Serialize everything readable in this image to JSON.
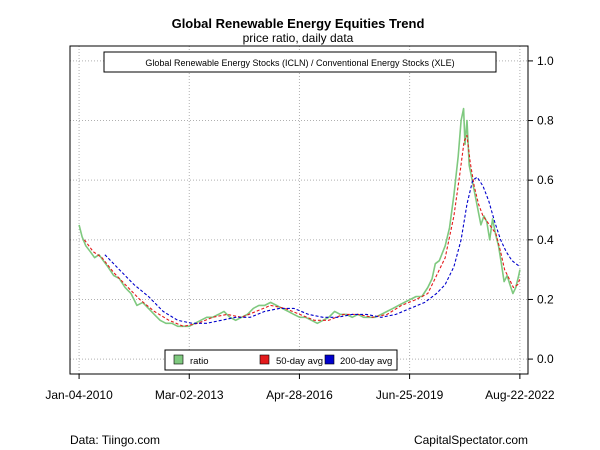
{
  "chart_data": {
    "type": "line",
    "title": "Global Renewable Energy Equities Trend",
    "subtitle": "price ratio, daily data",
    "annotation": "Global Renewable Energy Stocks (ICLN) / Conventional Energy Stocks (XLE)",
    "xlabel": "",
    "ylabel": "",
    "x_tick_labels": [
      "Jan-04-2010",
      "Mar-02-2013",
      "Apr-28-2016",
      "Jun-25-2019",
      "Aug-22-2022"
    ],
    "x_tick_dates": [
      "2010-01-04",
      "2013-03-02",
      "2016-04-28",
      "2019-06-25",
      "2022-08-22"
    ],
    "y_ticks": [
      0.0,
      0.2,
      0.4,
      0.6,
      0.8,
      1.0
    ],
    "y_tick_labels": [
      "0.0",
      "0.2",
      "0.4",
      "0.6",
      "0.8",
      "1.0"
    ],
    "ylim": [
      -0.05,
      1.05
    ],
    "xlim": [
      "2009-10-01",
      "2022-11-15"
    ],
    "grid": true,
    "y_axis_side": "right",
    "legend_position": "bottom-center",
    "series": [
      {
        "name": "ratio",
        "color": "#7fc97f",
        "style": "solid",
        "points": [
          [
            "2010-01-04",
            0.45
          ],
          [
            "2010-02-05",
            0.41
          ],
          [
            "2010-03-15",
            0.38
          ],
          [
            "2010-05-01",
            0.36
          ],
          [
            "2010-06-15",
            0.34
          ],
          [
            "2010-08-01",
            0.35
          ],
          [
            "2010-09-15",
            0.33
          ],
          [
            "2010-11-01",
            0.31
          ],
          [
            "2011-01-01",
            0.28
          ],
          [
            "2011-03-01",
            0.27
          ],
          [
            "2011-05-01",
            0.24
          ],
          [
            "2011-07-01",
            0.22
          ],
          [
            "2011-09-01",
            0.18
          ],
          [
            "2011-11-01",
            0.19
          ],
          [
            "2012-01-01",
            0.17
          ],
          [
            "2012-03-01",
            0.15
          ],
          [
            "2012-05-01",
            0.13
          ],
          [
            "2012-07-01",
            0.12
          ],
          [
            "2012-09-01",
            0.12
          ],
          [
            "2012-11-01",
            0.11
          ],
          [
            "2013-01-01",
            0.11
          ],
          [
            "2013-03-01",
            0.11
          ],
          [
            "2013-05-01",
            0.12
          ],
          [
            "2013-07-01",
            0.13
          ],
          [
            "2013-09-01",
            0.14
          ],
          [
            "2013-11-01",
            0.14
          ],
          [
            "2014-01-01",
            0.15
          ],
          [
            "2014-03-01",
            0.16
          ],
          [
            "2014-05-01",
            0.14
          ],
          [
            "2014-07-01",
            0.13
          ],
          [
            "2014-09-01",
            0.14
          ],
          [
            "2014-11-01",
            0.15
          ],
          [
            "2015-01-01",
            0.17
          ],
          [
            "2015-03-01",
            0.18
          ],
          [
            "2015-05-01",
            0.18
          ],
          [
            "2015-07-01",
            0.19
          ],
          [
            "2015-09-01",
            0.18
          ],
          [
            "2015-11-01",
            0.17
          ],
          [
            "2016-01-01",
            0.16
          ],
          [
            "2016-03-01",
            0.15
          ],
          [
            "2016-05-01",
            0.14
          ],
          [
            "2016-07-01",
            0.14
          ],
          [
            "2016-09-01",
            0.13
          ],
          [
            "2016-11-01",
            0.12
          ],
          [
            "2017-01-01",
            0.13
          ],
          [
            "2017-03-01",
            0.14
          ],
          [
            "2017-05-01",
            0.16
          ],
          [
            "2017-07-01",
            0.15
          ],
          [
            "2017-09-01",
            0.15
          ],
          [
            "2017-11-01",
            0.14
          ],
          [
            "2018-01-01",
            0.15
          ],
          [
            "2018-03-01",
            0.14
          ],
          [
            "2018-05-01",
            0.14
          ],
          [
            "2018-07-01",
            0.14
          ],
          [
            "2018-09-01",
            0.15
          ],
          [
            "2018-11-01",
            0.16
          ],
          [
            "2019-01-01",
            0.17
          ],
          [
            "2019-03-01",
            0.18
          ],
          [
            "2019-05-01",
            0.19
          ],
          [
            "2019-07-01",
            0.2
          ],
          [
            "2019-09-01",
            0.21
          ],
          [
            "2019-11-01",
            0.21
          ],
          [
            "2020-01-01",
            0.24
          ],
          [
            "2020-02-15",
            0.27
          ],
          [
            "2020-03-20",
            0.32
          ],
          [
            "2020-05-01",
            0.33
          ],
          [
            "2020-07-01",
            0.38
          ],
          [
            "2020-08-15",
            0.44
          ],
          [
            "2020-10-01",
            0.55
          ],
          [
            "2020-11-15",
            0.68
          ],
          [
            "2020-12-15",
            0.8
          ],
          [
            "2021-01-10",
            0.84
          ],
          [
            "2021-01-25",
            0.72
          ],
          [
            "2021-02-15",
            0.8
          ],
          [
            "2021-03-10",
            0.65
          ],
          [
            "2021-04-10",
            0.6
          ],
          [
            "2021-05-10",
            0.55
          ],
          [
            "2021-06-10",
            0.5
          ],
          [
            "2021-07-10",
            0.45
          ],
          [
            "2021-08-10",
            0.48
          ],
          [
            "2021-09-10",
            0.46
          ],
          [
            "2021-10-10",
            0.4
          ],
          [
            "2021-11-10",
            0.47
          ],
          [
            "2021-12-10",
            0.42
          ],
          [
            "2022-01-10",
            0.38
          ],
          [
            "2022-02-10",
            0.32
          ],
          [
            "2022-03-10",
            0.26
          ],
          [
            "2022-04-10",
            0.28
          ],
          [
            "2022-05-10",
            0.25
          ],
          [
            "2022-06-10",
            0.22
          ],
          [
            "2022-07-10",
            0.24
          ],
          [
            "2022-08-10",
            0.28
          ],
          [
            "2022-08-22",
            0.3
          ]
        ]
      },
      {
        "name": "50-day avg",
        "color": "#e41a1c",
        "style": "dashed",
        "points": [
          [
            "2010-03-01",
            0.4
          ],
          [
            "2010-06-01",
            0.36
          ],
          [
            "2010-09-01",
            0.34
          ],
          [
            "2011-01-01",
            0.29
          ],
          [
            "2011-06-01",
            0.24
          ],
          [
            "2011-10-01",
            0.2
          ],
          [
            "2012-03-01",
            0.16
          ],
          [
            "2012-08-01",
            0.13
          ],
          [
            "2013-01-01",
            0.11
          ],
          [
            "2013-06-01",
            0.12
          ],
          [
            "2013-11-01",
            0.14
          ],
          [
            "2014-04-01",
            0.15
          ],
          [
            "2014-09-01",
            0.14
          ],
          [
            "2015-02-01",
            0.16
          ],
          [
            "2015-07-01",
            0.18
          ],
          [
            "2015-12-01",
            0.17
          ],
          [
            "2016-05-01",
            0.15
          ],
          [
            "2016-10-01",
            0.13
          ],
          [
            "2017-03-01",
            0.13
          ],
          [
            "2017-08-01",
            0.15
          ],
          [
            "2018-01-01",
            0.15
          ],
          [
            "2018-06-01",
            0.14
          ],
          [
            "2018-11-01",
            0.15
          ],
          [
            "2019-04-01",
            0.18
          ],
          [
            "2019-09-01",
            0.2
          ],
          [
            "2020-01-01",
            0.22
          ],
          [
            "2020-04-01",
            0.28
          ],
          [
            "2020-07-01",
            0.34
          ],
          [
            "2020-10-01",
            0.48
          ],
          [
            "2020-12-01",
            0.62
          ],
          [
            "2021-01-15",
            0.73
          ],
          [
            "2021-02-15",
            0.75
          ],
          [
            "2021-03-20",
            0.66
          ],
          [
            "2021-05-01",
            0.58
          ],
          [
            "2021-06-15",
            0.52
          ],
          [
            "2021-08-01",
            0.48
          ],
          [
            "2021-09-15",
            0.46
          ],
          [
            "2021-11-01",
            0.44
          ],
          [
            "2021-12-15",
            0.42
          ],
          [
            "2022-02-01",
            0.36
          ],
          [
            "2022-03-15",
            0.3
          ],
          [
            "2022-05-01",
            0.27
          ],
          [
            "2022-06-15",
            0.24
          ],
          [
            "2022-08-01",
            0.25
          ],
          [
            "2022-08-22",
            0.27
          ]
        ]
      },
      {
        "name": "200-day avg",
        "color": "#0000cc",
        "style": "dashed",
        "points": [
          [
            "2010-10-01",
            0.35
          ],
          [
            "2011-03-01",
            0.3
          ],
          [
            "2011-08-01",
            0.25
          ],
          [
            "2012-01-01",
            0.21
          ],
          [
            "2012-06-01",
            0.16
          ],
          [
            "2012-11-01",
            0.13
          ],
          [
            "2013-04-01",
            0.12
          ],
          [
            "2013-09-01",
            0.12
          ],
          [
            "2014-02-01",
            0.13
          ],
          [
            "2014-07-01",
            0.14
          ],
          [
            "2014-12-01",
            0.14
          ],
          [
            "2015-05-01",
            0.16
          ],
          [
            "2015-10-01",
            0.17
          ],
          [
            "2016-03-01",
            0.17
          ],
          [
            "2016-08-01",
            0.15
          ],
          [
            "2017-01-01",
            0.14
          ],
          [
            "2017-06-01",
            0.14
          ],
          [
            "2017-11-01",
            0.15
          ],
          [
            "2018-04-01",
            0.15
          ],
          [
            "2018-09-01",
            0.14
          ],
          [
            "2019-02-01",
            0.15
          ],
          [
            "2019-07-01",
            0.17
          ],
          [
            "2019-12-01",
            0.19
          ],
          [
            "2020-04-01",
            0.22
          ],
          [
            "2020-07-01",
            0.25
          ],
          [
            "2020-10-01",
            0.31
          ],
          [
            "2020-12-15",
            0.4
          ],
          [
            "2021-02-15",
            0.52
          ],
          [
            "2021-04-15",
            0.6
          ],
          [
            "2021-06-01",
            0.61
          ],
          [
            "2021-08-01",
            0.58
          ],
          [
            "2021-10-01",
            0.53
          ],
          [
            "2021-12-01",
            0.46
          ],
          [
            "2022-02-01",
            0.4
          ],
          [
            "2022-04-01",
            0.36
          ],
          [
            "2022-06-01",
            0.33
          ],
          [
            "2022-08-22",
            0.31
          ]
        ]
      }
    ]
  },
  "footer": {
    "left": "Data: Tiingo.com",
    "right": "CapitalSpectator.com"
  }
}
